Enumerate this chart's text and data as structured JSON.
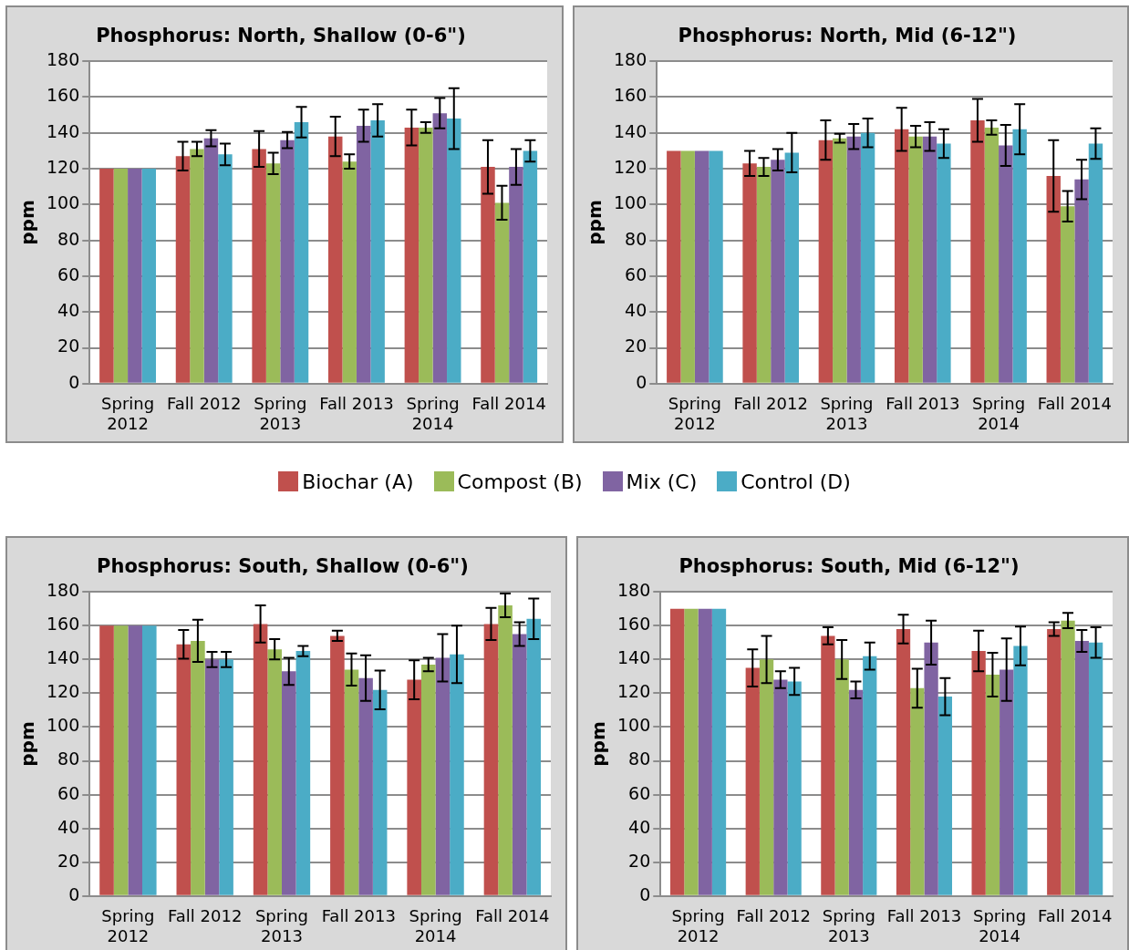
{
  "chart_data": [
    {
      "type": "bar",
      "title": "Phosphorus: North, Shallow (0-6\")",
      "ylabel": "ppm",
      "categories": [
        "Spring 2012",
        "Fall 2012",
        "Spring 2013",
        "Fall 2013",
        "Spring 2014",
        "Fall 2014"
      ],
      "ylim": [
        0,
        180
      ],
      "yticks": [
        0,
        20,
        40,
        60,
        80,
        100,
        120,
        140,
        160,
        180
      ],
      "grid": "y",
      "legend": "bottom",
      "series": [
        {
          "name": "Biochar (A)",
          "color": "#c0504d",
          "values": [
            120,
            127,
            131,
            138,
            143,
            121
          ],
          "errors": [
            null,
            8,
            10,
            11,
            10,
            15
          ]
        },
        {
          "name": "Compost (B)",
          "color": "#9bbb59",
          "values": [
            120,
            131,
            123,
            124,
            143,
            101
          ],
          "errors": [
            null,
            4,
            6,
            4,
            3,
            9.5
          ]
        },
        {
          "name": "Mix (C)",
          "color": "#8064a2",
          "values": [
            120,
            137,
            136,
            144,
            151,
            121
          ],
          "errors": [
            null,
            4.5,
            4.5,
            9,
            8.5,
            10
          ]
        },
        {
          "name": "Control (D)",
          "color": "#4bacc6",
          "values": [
            120,
            128,
            146,
            147,
            148,
            130
          ],
          "errors": [
            null,
            6,
            8.5,
            9,
            17,
            6
          ]
        }
      ]
    },
    {
      "type": "bar",
      "title": "Phosphorus: North, Mid (6-12\")",
      "ylabel": "ppm",
      "categories": [
        "Spring 2012",
        "Fall 2012",
        "Spring 2013",
        "Fall 2013",
        "Spring 2014",
        "Fall 2014"
      ],
      "ylim": [
        0,
        180
      ],
      "yticks": [
        0,
        20,
        40,
        60,
        80,
        100,
        120,
        140,
        160,
        180
      ],
      "grid": "y",
      "series": [
        {
          "color": "#c0504d",
          "values": [
            130,
            123,
            136,
            142,
            147,
            116
          ],
          "errors": [
            null,
            7,
            11,
            12,
            12,
            20
          ]
        },
        {
          "color": "#9bbb59",
          "values": [
            130,
            121,
            137,
            138,
            143,
            99
          ],
          "errors": [
            null,
            5,
            2.5,
            6,
            4,
            8.5
          ]
        },
        {
          "color": "#8064a2",
          "values": [
            130,
            125,
            138,
            138,
            133,
            114
          ],
          "errors": [
            null,
            6,
            7,
            8,
            11.5,
            11
          ]
        },
        {
          "color": "#4bacc6",
          "values": [
            130,
            129,
            140,
            134,
            142,
            134
          ],
          "errors": [
            null,
            11,
            8,
            8,
            14,
            8.5
          ]
        }
      ]
    },
    {
      "type": "bar",
      "title": "Phosphorus: South, Shallow (0-6\")",
      "ylabel": "ppm",
      "categories": [
        "Spring 2012",
        "Fall 2012",
        "Spring 2013",
        "Fall 2013",
        "Spring 2014",
        "Fall 2014"
      ],
      "ylim": [
        0,
        180
      ],
      "yticks": [
        0,
        20,
        40,
        60,
        80,
        100,
        120,
        140,
        160,
        180
      ],
      "grid": "y",
      "series": [
        {
          "color": "#c0504d",
          "values": [
            160,
            149,
            161,
            154,
            128,
            161
          ],
          "errors": [
            null,
            8.5,
            11,
            3,
            11.5,
            9.5
          ]
        },
        {
          "color": "#9bbb59",
          "values": [
            160,
            151,
            146,
            134,
            137,
            172
          ],
          "errors": [
            null,
            12.5,
            6,
            9.5,
            4,
            7
          ]
        },
        {
          "color": "#8064a2",
          "values": [
            160,
            140,
            133,
            129,
            141,
            155
          ],
          "errors": [
            null,
            4.5,
            8,
            13.5,
            14,
            7
          ]
        },
        {
          "color": "#4bacc6",
          "values": [
            160,
            140,
            145,
            122,
            143,
            164
          ],
          "errors": [
            null,
            4.5,
            3,
            11.5,
            17,
            12
          ]
        }
      ]
    },
    {
      "type": "bar",
      "title": "Phosphorus: South, Mid (6-12\")",
      "ylabel": "ppm",
      "categories": [
        "Spring 2012",
        "Fall 2012",
        "Spring 2013",
        "Fall 2013",
        "Spring 2014",
        "Fall 2014"
      ],
      "ylim": [
        0,
        180
      ],
      "yticks": [
        0,
        20,
        40,
        60,
        80,
        100,
        120,
        140,
        160,
        180
      ],
      "grid": "y",
      "series": [
        {
          "color": "#c0504d",
          "values": [
            170,
            135,
            154,
            158,
            145,
            158
          ],
          "errors": [
            null,
            11,
            5,
            8.5,
            12,
            4
          ]
        },
        {
          "color": "#9bbb59",
          "values": [
            170,
            140,
            140,
            123,
            131,
            163
          ],
          "errors": [
            null,
            14,
            11.5,
            11.5,
            13,
            4.5
          ]
        },
        {
          "color": "#8064a2",
          "values": [
            170,
            128,
            122,
            150,
            134,
            151
          ],
          "errors": [
            null,
            5,
            5,
            13,
            18.5,
            6.5
          ]
        },
        {
          "color": "#4bacc6",
          "values": [
            170,
            127,
            142,
            118,
            148,
            150
          ],
          "errors": [
            null,
            8,
            8,
            11,
            11.5,
            9
          ]
        }
      ]
    }
  ]
}
